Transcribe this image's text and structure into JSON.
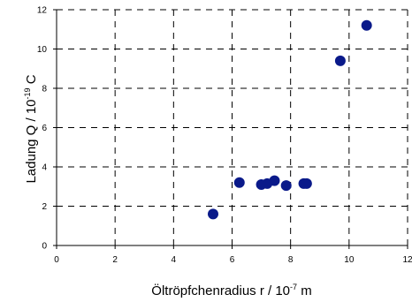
{
  "chart_data": {
    "type": "scatter",
    "xlabel": {
      "base": "Öltröpfchenradius r / 10",
      "exponent": "-7",
      "unit": " m"
    },
    "ylabel": {
      "base": "Ladung Q / 10",
      "exponent": "-19",
      "unit": " C"
    },
    "xlim": [
      0,
      12
    ],
    "ylim": [
      0,
      12
    ],
    "xticks": [
      "0",
      "2",
      "4",
      "6",
      "8",
      "10",
      "12"
    ],
    "yticks": [
      "0",
      "2",
      "4",
      "6",
      "8",
      "10",
      "12"
    ],
    "grid": true,
    "marker_color": "#0A1A8A",
    "series": [
      {
        "points": [
          {
            "x": 5.35,
            "y": 1.6
          },
          {
            "x": 6.25,
            "y": 3.2
          },
          {
            "x": 7.0,
            "y": 3.1
          },
          {
            "x": 7.2,
            "y": 3.15
          },
          {
            "x": 7.45,
            "y": 3.3
          },
          {
            "x": 7.85,
            "y": 3.05
          },
          {
            "x": 8.45,
            "y": 3.15
          },
          {
            "x": 8.55,
            "y": 3.15
          },
          {
            "x": 9.7,
            "y": 9.4
          },
          {
            "x": 10.6,
            "y": 11.2
          }
        ]
      }
    ]
  }
}
